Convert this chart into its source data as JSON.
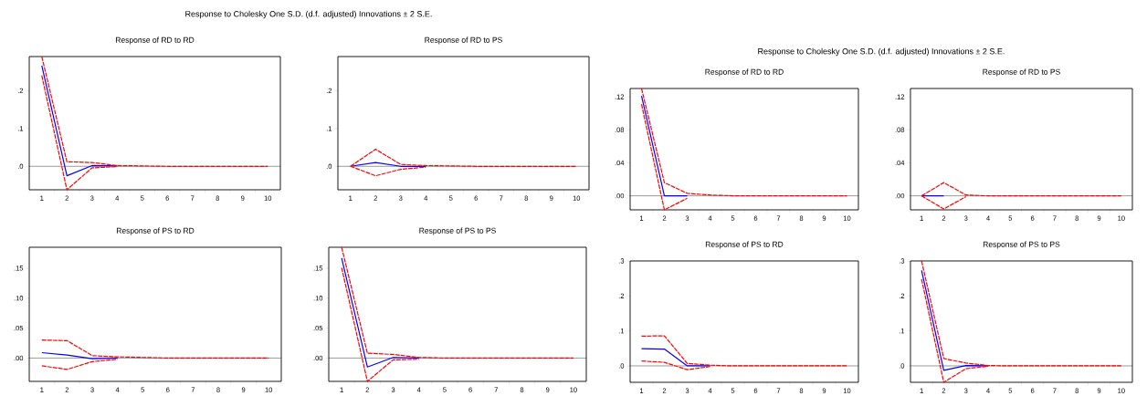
{
  "chart_data": [
    {
      "type": "line",
      "title": "Response of RD to RD",
      "annotations": [
        "Response to Cholesky One S.D. (d.f. adjusted) Innovations ± 2 S.E."
      ],
      "categories": [
        "1",
        "2",
        "3",
        "4",
        "5",
        "6",
        "7",
        "8",
        "9",
        "10"
      ],
      "series": [
        {
          "color": "#0000ff",
          "line_style": "solid",
          "values": [
            0.266,
            -0.025,
            0.002,
            0.001,
            null,
            null,
            null,
            null,
            null,
            null
          ]
        },
        {
          "color": "#ff0000",
          "line_style": "dashed",
          "values": [
            0.24,
            -0.062,
            -0.004,
            -0.001,
            null,
            null,
            null,
            null,
            null,
            null
          ]
        },
        {
          "color": "#ff0000",
          "line_style": "dashed",
          "values": [
            0.29,
            0.012,
            0.01,
            0.002,
            0.001,
            0,
            0,
            0,
            0,
            0
          ]
        }
      ],
      "ylim": [
        -0.062,
        0.29
      ],
      "yticks": [
        {
          "value": 0,
          "label": ".0"
        },
        {
          "value": 0.1,
          "label": ".1"
        },
        {
          "value": 0.2,
          "label": ".2"
        }
      ],
      "ref_lines": [
        {
          "axis": "y",
          "value": 0,
          "color": "#000000"
        }
      ]
    },
    {
      "type": "line",
      "title": "Response of RD to PS",
      "categories": [
        "1",
        "2",
        "3",
        "4",
        "5",
        "6",
        "7",
        "8",
        "9",
        "10"
      ],
      "series": [
        {
          "color": "#0000ff",
          "line_style": "solid",
          "values": [
            0,
            0.01,
            0,
            0,
            null,
            null,
            null,
            null,
            null,
            null
          ]
        },
        {
          "color": "#ff0000",
          "line_style": "dashed",
          "values": [
            0,
            -0.025,
            -0.008,
            -0.002,
            null,
            null,
            null,
            null,
            null,
            null
          ]
        },
        {
          "color": "#ff0000",
          "line_style": "dashed",
          "values": [
            0,
            0.045,
            0.005,
            0.002,
            0.001,
            0,
            0,
            0,
            0,
            0
          ]
        }
      ],
      "ylim": [
        -0.062,
        0.29
      ],
      "yticks": [
        {
          "value": 0,
          "label": ".0"
        },
        {
          "value": 0.1,
          "label": ".1"
        },
        {
          "value": 0.2,
          "label": ".2"
        }
      ],
      "ref_lines": [
        {
          "axis": "y",
          "value": 0,
          "color": "#000000"
        }
      ]
    },
    {
      "type": "line",
      "title": "Response of PS to RD",
      "categories": [
        "1",
        "2",
        "3",
        "4",
        "5",
        "6",
        "7",
        "8",
        "9",
        "10"
      ],
      "series": [
        {
          "color": "#0000ff",
          "line_style": "solid",
          "values": [
            0.009,
            0.005,
            -0.001,
            0,
            null,
            null,
            null,
            null,
            null,
            null
          ]
        },
        {
          "color": "#ff0000",
          "line_style": "dashed",
          "values": [
            -0.013,
            -0.019,
            -0.006,
            -0.002,
            null,
            null,
            null,
            null,
            null,
            null
          ]
        },
        {
          "color": "#ff0000",
          "line_style": "dashed",
          "values": [
            0.03,
            0.029,
            0.004,
            0.002,
            0.001,
            0,
            0,
            0,
            0,
            0
          ]
        }
      ],
      "ylim": [
        -0.039,
        0.185
      ],
      "yticks": [
        {
          "value": 0,
          "label": ".00"
        },
        {
          "value": 0.05,
          "label": ".05"
        },
        {
          "value": 0.1,
          "label": ".10"
        },
        {
          "value": 0.15,
          "label": ".15"
        }
      ],
      "ref_lines": [
        {
          "axis": "y",
          "value": 0,
          "color": "#000000"
        }
      ]
    },
    {
      "type": "line",
      "title": "Response of PS to PS",
      "categories": [
        "1",
        "2",
        "3",
        "4",
        "5",
        "6",
        "7",
        "8",
        "9",
        "10"
      ],
      "series": [
        {
          "color": "#0000ff",
          "line_style": "solid",
          "values": [
            0.167,
            -0.015,
            0.001,
            0,
            null,
            null,
            null,
            null,
            null,
            null
          ]
        },
        {
          "color": "#ff0000",
          "line_style": "dashed",
          "values": [
            0.151,
            -0.039,
            -0.003,
            -0.002,
            null,
            null,
            null,
            null,
            null,
            null
          ]
        },
        {
          "color": "#ff0000",
          "line_style": "dashed",
          "values": [
            0.185,
            0.008,
            0.006,
            0.001,
            0,
            0,
            0,
            0,
            0,
            0
          ]
        }
      ],
      "ylim": [
        -0.039,
        0.185
      ],
      "yticks": [
        {
          "value": 0,
          "label": ".00"
        },
        {
          "value": 0.05,
          "label": ".05"
        },
        {
          "value": 0.1,
          "label": ".10"
        },
        {
          "value": 0.15,
          "label": ".15"
        }
      ],
      "ref_lines": [
        {
          "axis": "y",
          "value": 0,
          "color": "#000000"
        }
      ]
    },
    {
      "type": "line",
      "title": "Response of RD to RD",
      "annotations": [
        "Response to Cholesky One S.D. (d.f. adjusted) Innovations ± 2 S.E."
      ],
      "categories": [
        "1",
        "2",
        "3",
        "4",
        "5",
        "6",
        "7",
        "8",
        "9",
        "10"
      ],
      "series": [
        {
          "color": "#0000ff",
          "line_style": "solid",
          "values": [
            0.121,
            0,
            0,
            null,
            null,
            null,
            null,
            null,
            null,
            null
          ]
        },
        {
          "color": "#ff0000",
          "line_style": "dashed",
          "values": [
            0.111,
            -0.017,
            -0.003,
            null,
            null,
            null,
            null,
            null,
            null,
            null
          ]
        },
        {
          "color": "#ff0000",
          "line_style": "dashed",
          "values": [
            0.13,
            0.016,
            0.003,
            0.001,
            0,
            0,
            0,
            0,
            0,
            0
          ]
        }
      ],
      "ylim": [
        -0.017,
        0.13
      ],
      "yticks": [
        {
          "value": 0,
          "label": ".00"
        },
        {
          "value": 0.04,
          "label": ".04"
        },
        {
          "value": 0.08,
          "label": ".08"
        },
        {
          "value": 0.12,
          "label": ".12"
        }
      ],
      "ref_lines": [
        {
          "axis": "y",
          "value": 0,
          "color": "#000000"
        }
      ]
    },
    {
      "type": "line",
      "title": "Response of RD to PS",
      "categories": [
        "1",
        "2",
        "3",
        "4",
        "5",
        "6",
        "7",
        "8",
        "9",
        "10"
      ],
      "series": [
        {
          "color": "#0000ff",
          "line_style": "solid",
          "values": [
            0,
            0,
            null,
            null,
            null,
            null,
            null,
            null,
            null,
            null
          ]
        },
        {
          "color": "#ff0000",
          "line_style": "dashed",
          "values": [
            0,
            -0.016,
            -0.001,
            null,
            null,
            null,
            null,
            null,
            null,
            null
          ]
        },
        {
          "color": "#ff0000",
          "line_style": "dashed",
          "values": [
            0,
            0.016,
            0.001,
            0,
            0,
            0,
            0,
            0,
            0,
            0
          ]
        }
      ],
      "ylim": [
        -0.017,
        0.13
      ],
      "yticks": [
        {
          "value": 0,
          "label": ".00"
        },
        {
          "value": 0.04,
          "label": ".04"
        },
        {
          "value": 0.08,
          "label": ".08"
        },
        {
          "value": 0.12,
          "label": ".12"
        }
      ],
      "ref_lines": [
        {
          "axis": "y",
          "value": 0,
          "color": "#000000"
        }
      ]
    },
    {
      "type": "line",
      "title": "Response of PS to RD",
      "categories": [
        "1",
        "2",
        "3",
        "4",
        "5",
        "6",
        "7",
        "8",
        "9",
        "10"
      ],
      "series": [
        {
          "color": "#0000ff",
          "line_style": "solid",
          "values": [
            0.049,
            0.048,
            0,
            0,
            null,
            null,
            null,
            null,
            null,
            null
          ]
        },
        {
          "color": "#ff0000",
          "line_style": "dashed",
          "values": [
            0.014,
            0.01,
            -0.011,
            -0.002,
            null,
            null,
            null,
            null,
            null,
            null
          ]
        },
        {
          "color": "#ff0000",
          "line_style": "dashed",
          "values": [
            0.085,
            0.086,
            0.007,
            0.002,
            0,
            0,
            0,
            0,
            0,
            0
          ]
        }
      ],
      "ylim": [
        -0.047,
        0.3
      ],
      "yticks": [
        {
          "value": 0,
          "label": ".0"
        },
        {
          "value": 0.1,
          "label": ".1"
        },
        {
          "value": 0.2,
          "label": ".2"
        },
        {
          "value": 0.3,
          "label": ".3"
        }
      ],
      "ref_lines": [
        {
          "axis": "y",
          "value": 0,
          "color": "#000000"
        }
      ]
    },
    {
      "type": "line",
      "title": "Response of PS to PS",
      "categories": [
        "1",
        "2",
        "3",
        "4",
        "5",
        "6",
        "7",
        "8",
        "9",
        "10"
      ],
      "series": [
        {
          "color": "#0000ff",
          "line_style": "solid",
          "values": [
            0.273,
            -0.013,
            0.001,
            0,
            null,
            null,
            null,
            null,
            null,
            null
          ]
        },
        {
          "color": "#ff0000",
          "line_style": "dashed",
          "values": [
            0.248,
            -0.047,
            -0.008,
            -0.001,
            null,
            null,
            null,
            null,
            null,
            null
          ]
        },
        {
          "color": "#ff0000",
          "line_style": "dashed",
          "values": [
            0.3,
            0.021,
            0.008,
            0.001,
            0,
            0,
            0,
            0,
            0,
            0
          ]
        }
      ],
      "ylim": [
        -0.047,
        0.3
      ],
      "yticks": [
        {
          "value": 0,
          "label": ".0"
        },
        {
          "value": 0.1,
          "label": ".1"
        },
        {
          "value": 0.2,
          "label": ".2"
        },
        {
          "value": 0.3,
          "label": ".3"
        }
      ],
      "ref_lines": [
        {
          "axis": "y",
          "value": 0,
          "color": "#000000"
        }
      ]
    }
  ]
}
